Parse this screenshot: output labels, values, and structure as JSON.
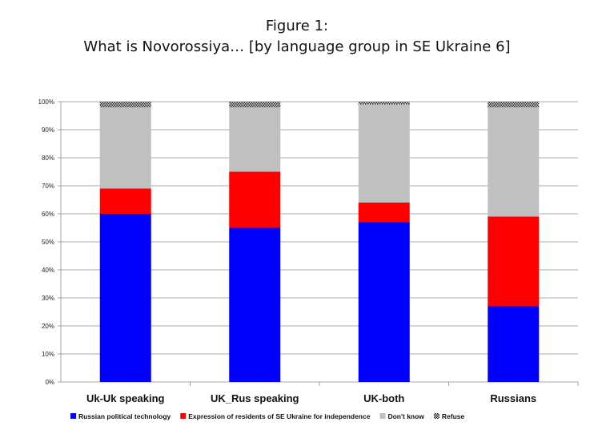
{
  "chart_data": {
    "type": "bar",
    "stacked": true,
    "title": "Figure 1:",
    "subtitle": "What is Novorossiya… [by language group in SE Ukraine 6]",
    "xlabel": "",
    "ylabel": "",
    "ylim": [
      0,
      100
    ],
    "ytick_labels": [
      "0%",
      "10%",
      "20%",
      "30%",
      "40%",
      "50%",
      "60%",
      "70%",
      "80%",
      "90%",
      "100%"
    ],
    "categories": [
      "Uk-Uk speaking",
      "UK_Rus speaking",
      "UK-both",
      "Russians"
    ],
    "series": [
      {
        "name": "Russian political technology",
        "values": [
          60,
          55,
          57,
          27
        ],
        "color": "#0000ff",
        "pattern": "solid"
      },
      {
        "name": "Expression of residents of SE Ukraine for independence",
        "values": [
          9,
          20,
          7,
          32
        ],
        "color": "#ff0000",
        "pattern": "solid"
      },
      {
        "name": "Don't know",
        "values": [
          29,
          23,
          35,
          39
        ],
        "color": "#c0c0c0",
        "pattern": "solid"
      },
      {
        "name": "Refuse",
        "values": [
          2,
          2,
          1,
          2
        ],
        "color": "#000000",
        "pattern": "checker"
      }
    ],
    "grid": true,
    "legend_position": "bottom"
  }
}
